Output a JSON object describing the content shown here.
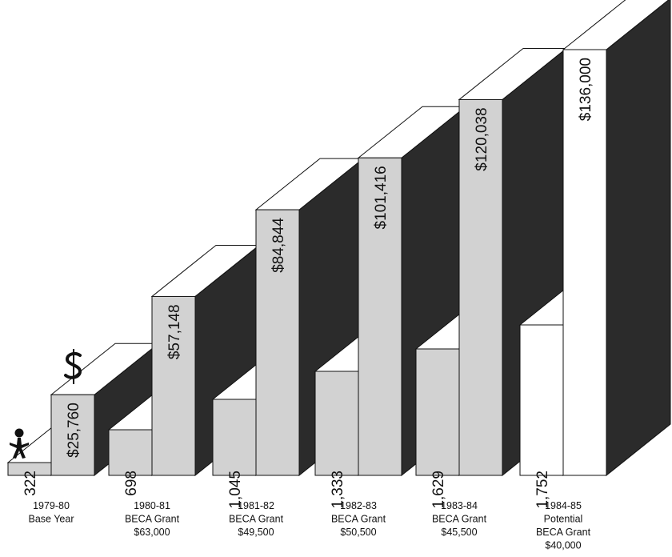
{
  "chart_data": {
    "type": "bar",
    "style": "3d-stepped",
    "categories": [
      {
        "lines": [
          "1979-80",
          "Base Year"
        ]
      },
      {
        "lines": [
          "1980-81",
          "BECA Grant",
          "$63,000"
        ]
      },
      {
        "lines": [
          "1981-82",
          "BECA Grant",
          "$49,500"
        ]
      },
      {
        "lines": [
          "1982-83",
          "BECA Grant",
          "$50,500"
        ]
      },
      {
        "lines": [
          "1983-84",
          "BECA Grant",
          "$45,500"
        ]
      },
      {
        "lines": [
          "1984-85",
          "Potential",
          "BECA Grant",
          "$40,000"
        ]
      }
    ],
    "series": [
      {
        "icon": "person-icon",
        "values": [
          322,
          698,
          1045,
          1333,
          1629,
          1752
        ],
        "labels": [
          "322",
          "698",
          "1,045",
          "1,333",
          "1,629",
          "1,752"
        ]
      },
      {
        "icon": "dollar-sign-icon",
        "values": [
          25760,
          57148,
          84844,
          101416,
          120038,
          136000
        ],
        "labels": [
          "$25,760",
          "$57,148",
          "$84,844",
          "$101,416",
          "$120,038",
          "$136,000"
        ]
      }
    ],
    "colors": {
      "bar_front": "#d2d2d2",
      "bar_front_last": "#ffffff",
      "bar_side": "#2b2b2b",
      "bar_top": "#ffffff",
      "outline": "#111111"
    }
  }
}
